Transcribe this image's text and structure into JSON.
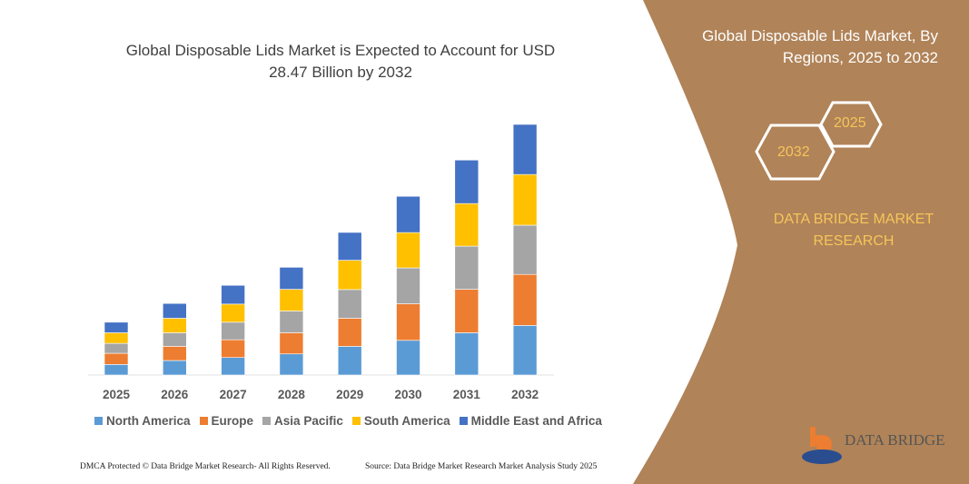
{
  "title": "Global Disposable Lids Market is Expected to Account for USD 28.47 Billion by 2032",
  "side_panel": {
    "title": "Global Disposable Lids Market, By Regions, 2025 to 2032",
    "hex_start": "2025",
    "hex_end": "2032",
    "brand": "DATA BRIDGE MARKET RESEARCH",
    "logo_text": "DATA BRIDGE",
    "panel_color": "#b08358"
  },
  "footer": {
    "left": "DMCA Protected © Data Bridge Market Research- All Rights Reserved.",
    "right": "Source: Data Bridge Market Research Market Analysis Study 2025"
  },
  "chart_data": {
    "type": "bar",
    "stacked": true,
    "title": "Global Disposable Lids Market is Expected to Account for USD 28.47 Billion by 2032",
    "xlabel": "",
    "ylabel": "",
    "grid": false,
    "legend_position": "bottom",
    "categories": [
      "2025",
      "2026",
      "2027",
      "2028",
      "2029",
      "2030",
      "2031",
      "2032"
    ],
    "series": [
      {
        "name": "North America",
        "color": "#5b9bd5",
        "values": [
          1.2,
          1.65,
          1.99,
          2.4,
          3.26,
          3.94,
          4.8,
          5.63
        ]
      },
      {
        "name": "Europe",
        "color": "#ed7d31",
        "values": [
          1.27,
          1.61,
          2.02,
          2.4,
          3.19,
          4.15,
          4.94,
          5.8
        ]
      },
      {
        "name": "Asia Pacific",
        "color": "#a5a5a5",
        "values": [
          1.13,
          1.54,
          1.99,
          2.47,
          3.26,
          4.08,
          4.9,
          5.59
        ]
      },
      {
        "name": "South America",
        "color": "#ffc000",
        "values": [
          1.2,
          1.65,
          2.06,
          2.47,
          3.33,
          4.01,
          4.84,
          5.76
        ]
      },
      {
        "name": "Middle East and Africa",
        "color": "#4472c4",
        "values": [
          1.2,
          1.68,
          2.13,
          2.5,
          3.16,
          4.12,
          4.94,
          5.69
        ]
      }
    ]
  }
}
